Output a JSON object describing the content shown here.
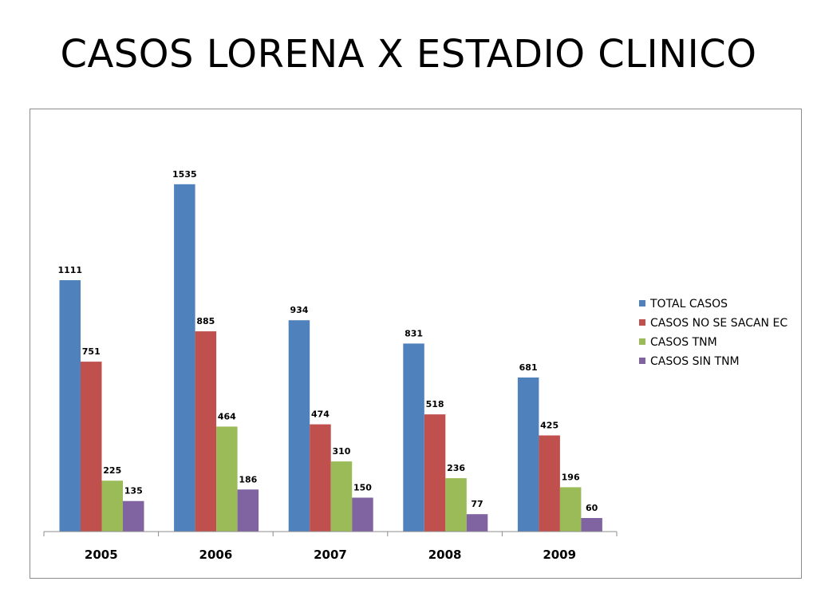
{
  "slide": {
    "title": "CASOS LORENA X ESTADIO CLINICO"
  },
  "chart_data": {
    "type": "bar",
    "title": "",
    "xlabel": "",
    "ylabel": "",
    "ylim": [
      0,
      1700
    ],
    "grid": false,
    "legend_position": "right",
    "categories": [
      "2005",
      "2006",
      "2007",
      "2008",
      "2009"
    ],
    "series": [
      {
        "name": "TOTAL CASOS",
        "color": "#4f81bd",
        "values": [
          1111,
          1535,
          934,
          831,
          681
        ]
      },
      {
        "name": "CASOS NO SE SACAN EC",
        "color": "#c0504d",
        "values": [
          751,
          885,
          474,
          518,
          425
        ]
      },
      {
        "name": "CASOS TNM",
        "color": "#9bbb59",
        "values": [
          225,
          464,
          310,
          236,
          196
        ]
      },
      {
        "name": "CASOS SIN TNM",
        "color": "#8064a2",
        "values": [
          135,
          186,
          150,
          77,
          60
        ]
      }
    ]
  }
}
